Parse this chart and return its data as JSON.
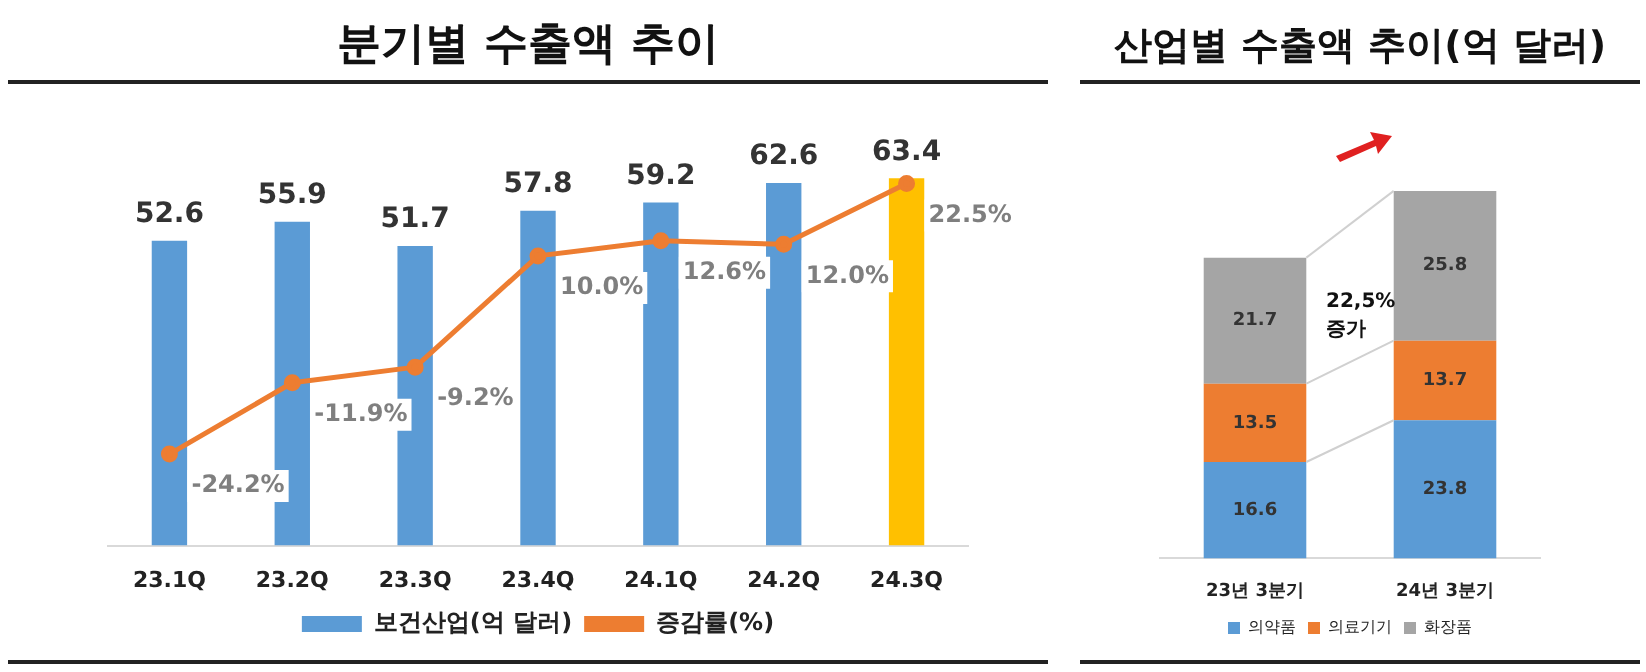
{
  "chart_data": [
    {
      "type": "bar",
      "title": "분기별 수출액 추이",
      "categories": [
        "23.1Q",
        "23.2Q",
        "23.3Q",
        "23.4Q",
        "24.1Q",
        "24.2Q",
        "24.3Q"
      ],
      "series": [
        {
          "name": "보건산업(억 달러)",
          "color": "#5b9bd5",
          "colors": [
            "#5b9bd5",
            "#5b9bd5",
            "#5b9bd5",
            "#5b9bd5",
            "#5b9bd5",
            "#5b9bd5",
            "#ffc000"
          ],
          "values": [
            52.6,
            55.9,
            51.7,
            57.8,
            59.2,
            62.6,
            63.4
          ],
          "value_labels": [
            "52.6",
            "55.9",
            "51.7",
            "57.8",
            "59.2",
            "62.6",
            "63.4"
          ]
        },
        {
          "name": "증감률(%)",
          "type": "line",
          "axis": "y2",
          "color": "#ed7d31",
          "values": [
            -24.2,
            -11.9,
            -9.2,
            10.0,
            12.6,
            12.0,
            22.5
          ],
          "value_labels": [
            "-24.2%",
            "-11.9%",
            "-9.2%",
            "10.0%",
            "12.6%",
            "12.0%",
            "22.5%"
          ]
        }
      ],
      "tick_labels": "x",
      "grid": false,
      "legend": "bottom",
      "marker": "circle",
      "line_style": "solid"
    },
    {
      "type": "bar",
      "title": "산업별 수출액 추이(억 달러)",
      "categories": [
        "23년 3분기",
        "24년 3분기"
      ],
      "stacked": true,
      "series": [
        {
          "name": "의약품",
          "color": "#5b9bd5",
          "values": [
            16.6,
            23.8
          ]
        },
        {
          "name": "의료기기",
          "color": "#ed7d31",
          "values": [
            13.5,
            13.7
          ]
        },
        {
          "name": "화장품",
          "color": "#a5a5a5",
          "values": [
            21.7,
            25.8
          ]
        }
      ],
      "tick_labels": "x",
      "grid": false,
      "legend": "bottom",
      "data_labels": true,
      "annotations": [
        "22,5%\n증가"
      ]
    }
  ]
}
